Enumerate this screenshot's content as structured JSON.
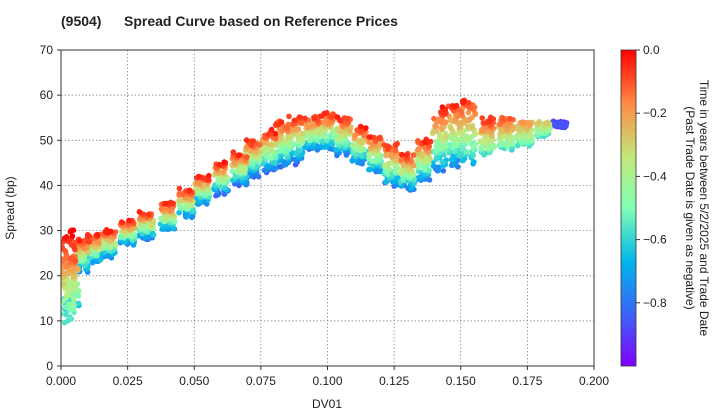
{
  "chart_data": {
    "type": "scatter",
    "title_code": "(9504)",
    "title": "Spread Curve based on Reference Prices",
    "xlabel": "DV01",
    "ylabel": "Spread (bp)",
    "xlim": [
      0.0,
      0.2
    ],
    "ylim": [
      0,
      70
    ],
    "xticks": [
      0.0,
      0.025,
      0.05,
      0.075,
      0.1,
      0.125,
      0.15,
      0.175,
      0.2
    ],
    "xtick_labels": [
      "0.000",
      "0.025",
      "0.050",
      "0.075",
      "0.100",
      "0.125",
      "0.150",
      "0.175",
      "0.200"
    ],
    "yticks": [
      0,
      10,
      20,
      30,
      40,
      50,
      60,
      70
    ],
    "ytick_labels": [
      "0",
      "10",
      "20",
      "30",
      "40",
      "50",
      "60",
      "70"
    ],
    "grid": true,
    "colorbar": {
      "label_line1": "Time in years between 5/2/2025 and Trade Date",
      "label_line2": "(Past Trade Date is given as negative)",
      "range": [
        -1.0,
        0.0
      ],
      "ticks": [
        0.0,
        -0.2,
        -0.4,
        -0.6,
        -0.8
      ],
      "tick_labels": [
        "0.0",
        "−0.2",
        "−0.4",
        "−0.6",
        "−0.8"
      ],
      "colormap": "rainbow"
    },
    "clusters": [
      {
        "x": 0.0025,
        "y_from": 10,
        "y_to": 30,
        "t_from": -0.6,
        "t_to": 0.0
      },
      {
        "x": 0.004,
        "y_from": 13,
        "y_to": 24,
        "t_from": -0.7,
        "t_to": -0.1
      },
      {
        "x": 0.008,
        "y_from": 21,
        "y_to": 28,
        "t_from": -0.8,
        "t_to": -0.05
      },
      {
        "x": 0.012,
        "y_from": 23,
        "y_to": 29,
        "t_from": -0.8,
        "t_to": -0.05
      },
      {
        "x": 0.018,
        "y_from": 24,
        "y_to": 30,
        "t_from": -0.8,
        "t_to": -0.05
      },
      {
        "x": 0.025,
        "y_from": 27,
        "y_to": 32,
        "t_from": -0.8,
        "t_to": -0.05
      },
      {
        "x": 0.032,
        "y_from": 28,
        "y_to": 34,
        "t_from": -0.85,
        "t_to": -0.05
      },
      {
        "x": 0.04,
        "y_from": 30,
        "y_to": 36,
        "t_from": -0.8,
        "t_to": -0.05
      },
      {
        "x": 0.047,
        "y_from": 33,
        "y_to": 39,
        "t_from": -0.8,
        "t_to": -0.05
      },
      {
        "x": 0.053,
        "y_from": 36,
        "y_to": 42,
        "t_from": -0.8,
        "t_to": -0.05
      },
      {
        "x": 0.06,
        "y_from": 38,
        "y_to": 45,
        "t_from": -0.85,
        "t_to": -0.05
      },
      {
        "x": 0.067,
        "y_from": 40,
        "y_to": 47,
        "t_from": -0.85,
        "t_to": -0.05
      },
      {
        "x": 0.072,
        "y_from": 42,
        "y_to": 50,
        "t_from": -0.85,
        "t_to": -0.05
      },
      {
        "x": 0.078,
        "y_from": 43,
        "y_to": 52,
        "t_from": -0.85,
        "t_to": -0.05
      },
      {
        "x": 0.083,
        "y_from": 44,
        "y_to": 54,
        "t_from": -0.85,
        "t_to": -0.05
      },
      {
        "x": 0.088,
        "y_from": 45,
        "y_to": 55,
        "t_from": -0.85,
        "t_to": -0.05
      },
      {
        "x": 0.094,
        "y_from": 48,
        "y_to": 55,
        "t_from": -0.8,
        "t_to": -0.05
      },
      {
        "x": 0.1,
        "y_from": 48,
        "y_to": 56,
        "t_from": -0.8,
        "t_to": -0.05
      },
      {
        "x": 0.106,
        "y_from": 47,
        "y_to": 55,
        "t_from": -0.8,
        "t_to": -0.05
      },
      {
        "x": 0.112,
        "y_from": 45,
        "y_to": 53,
        "t_from": -0.8,
        "t_to": -0.05
      },
      {
        "x": 0.118,
        "y_from": 43,
        "y_to": 51,
        "t_from": -0.8,
        "t_to": -0.05
      },
      {
        "x": 0.124,
        "y_from": 40,
        "y_to": 49,
        "t_from": -0.8,
        "t_to": -0.05
      },
      {
        "x": 0.13,
        "y_from": 39,
        "y_to": 47,
        "t_from": -0.8,
        "t_to": -0.05
      },
      {
        "x": 0.136,
        "y_from": 41,
        "y_to": 50,
        "t_from": -0.8,
        "t_to": -0.05
      },
      {
        "x": 0.142,
        "y_from": 43,
        "y_to": 57,
        "t_from": -0.8,
        "t_to": -0.05
      },
      {
        "x": 0.148,
        "y_from": 44,
        "y_to": 58,
        "t_from": -0.8,
        "t_to": -0.05
      },
      {
        "x": 0.153,
        "y_from": 45,
        "y_to": 59,
        "t_from": -0.7,
        "t_to": -0.05
      },
      {
        "x": 0.16,
        "y_from": 47,
        "y_to": 55,
        "t_from": -0.6,
        "t_to": -0.05
      },
      {
        "x": 0.167,
        "y_from": 48,
        "y_to": 55,
        "t_from": -0.6,
        "t_to": -0.1
      },
      {
        "x": 0.174,
        "y_from": 49,
        "y_to": 54,
        "t_from": -0.6,
        "t_to": -0.2
      },
      {
        "x": 0.181,
        "y_from": 51,
        "y_to": 54,
        "t_from": -0.6,
        "t_to": -0.3
      },
      {
        "x": 0.187,
        "y_from": 53,
        "y_to": 54,
        "t_from": -0.9,
        "t_to": -0.9
      }
    ]
  }
}
